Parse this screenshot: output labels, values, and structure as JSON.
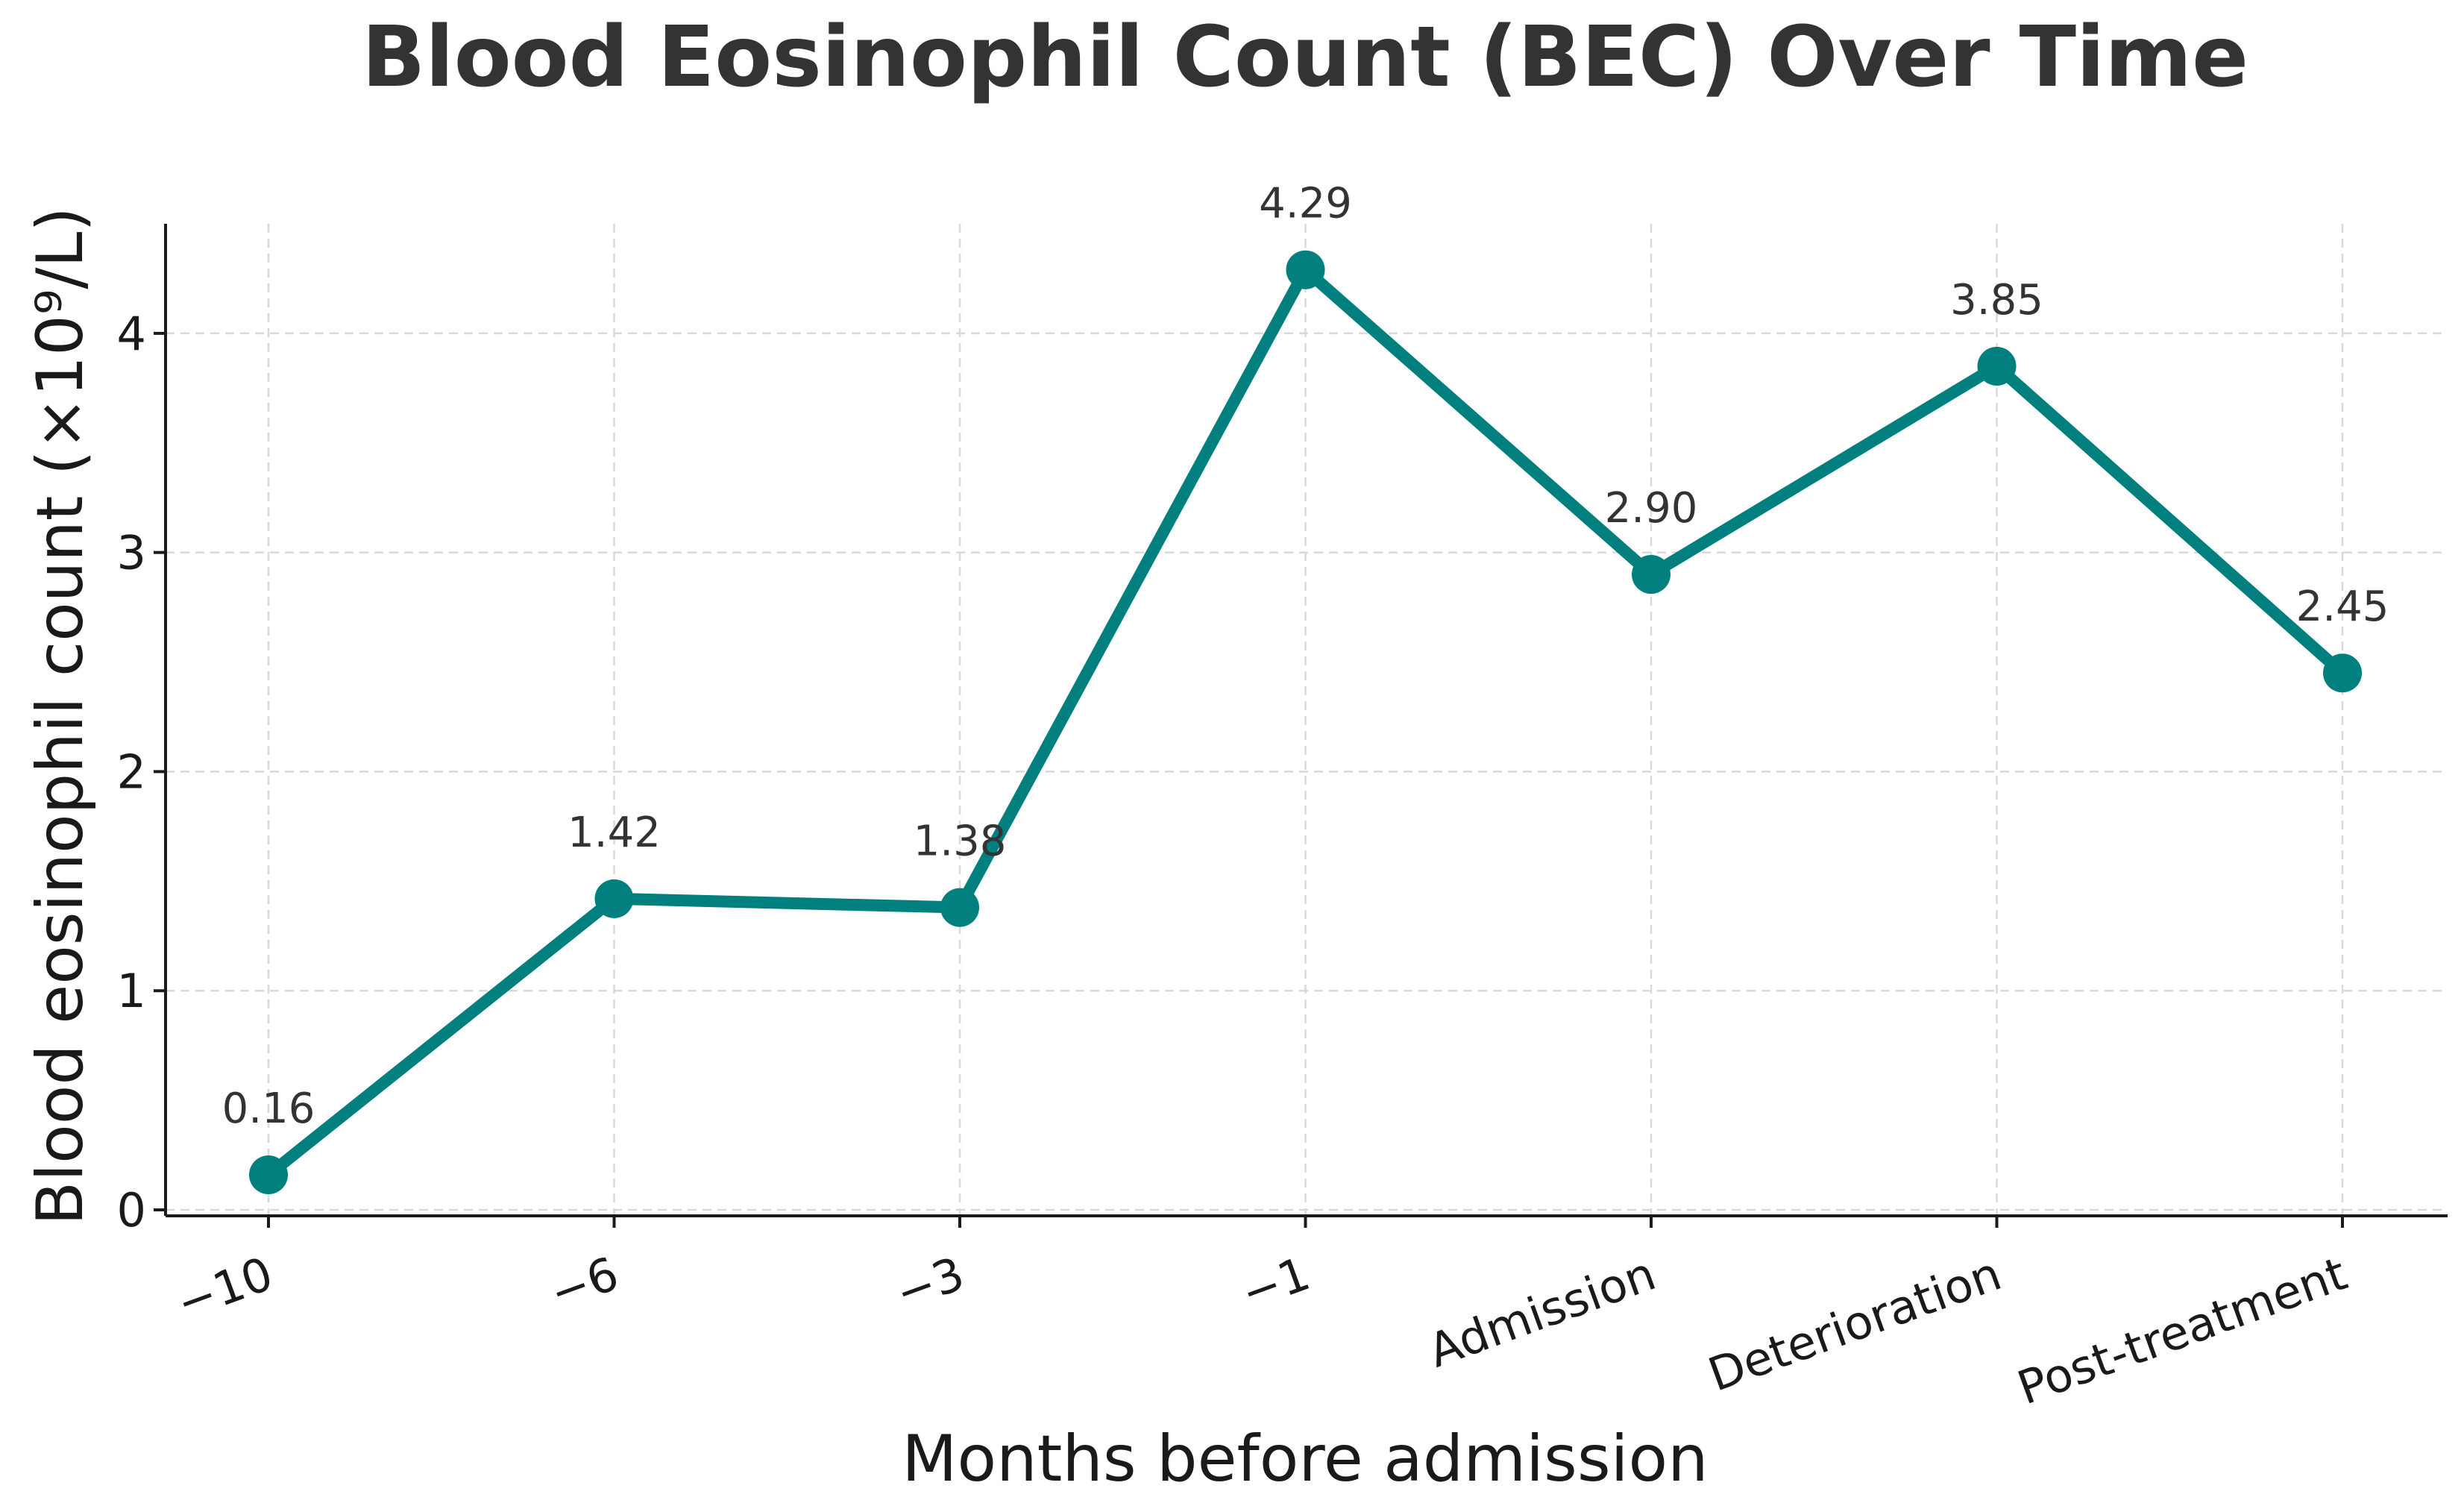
{
  "chart_data": {
    "type": "line",
    "title": "Blood Eosinophil Count (BEC) Over Time",
    "xlabel": "Months before admission",
    "ylabel": "Blood eosinophil count (×10⁹/L)",
    "categories": [
      "−10",
      "−6",
      "−3",
      "−1",
      "Admission",
      "Deterioration",
      "Post-treatment"
    ],
    "series": [
      {
        "name": "BEC",
        "values": [
          0.16,
          1.42,
          1.38,
          4.29,
          2.9,
          3.85,
          2.45
        ],
        "labels": [
          "0.16",
          "1.42",
          "1.38",
          "4.29",
          "2.90",
          "3.85",
          "2.45"
        ],
        "color": "#007f7f"
      }
    ],
    "yticks": [
      "0",
      "1",
      "2",
      "3",
      "4"
    ],
    "ylim": [
      0,
      4.5
    ],
    "grid": true,
    "legend": "none"
  }
}
